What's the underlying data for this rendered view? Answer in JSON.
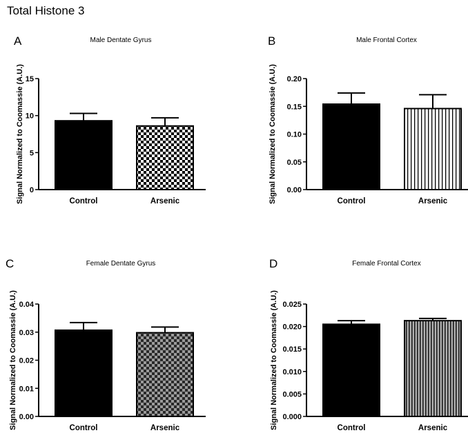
{
  "figure_title": "Total Histone 3",
  "chart_data": [
    {
      "type": "bar",
      "panel_letter": "A",
      "title": "Male Dentate Gyrus",
      "ylabel": "Signal Normalized to Coomassie (A.U.)",
      "xlabel": "",
      "categories": [
        "Control",
        "Arsenic"
      ],
      "values": [
        9.3,
        8.6
      ],
      "errors": [
        1.0,
        1.1
      ],
      "fills": [
        "solid",
        "checker"
      ],
      "ylim": [
        0,
        15
      ],
      "yticks": [
        0,
        5,
        10,
        15
      ],
      "ytick_labels": [
        "0",
        "5",
        "10",
        "15"
      ],
      "grid": false
    },
    {
      "type": "bar",
      "panel_letter": "B",
      "title": "Male Frontal Cortex",
      "ylabel": "Signal Normalized to Coomassie (A.U.)",
      "xlabel": "",
      "categories": [
        "Control",
        "Arsenic"
      ],
      "values": [
        0.154,
        0.146
      ],
      "errors": [
        0.02,
        0.025
      ],
      "fills": [
        "solid",
        "vstripe"
      ],
      "ylim": [
        0,
        0.2
      ],
      "yticks": [
        0,
        0.05,
        0.1,
        0.15,
        0.2
      ],
      "ytick_labels": [
        "0.00",
        "0.05",
        "0.10",
        "0.15",
        "0.20"
      ],
      "grid": false
    },
    {
      "type": "bar",
      "panel_letter": "C",
      "title": "Female Dentate Gyrus",
      "ylabel": "Signal Normalized to Coomassie (A.U.)",
      "xlabel": "",
      "categories": [
        "Control",
        "Arsenic"
      ],
      "values": [
        0.0307,
        0.0298
      ],
      "errors": [
        0.0027,
        0.002
      ],
      "fills": [
        "solid",
        "gray-checker"
      ],
      "ylim": [
        0,
        0.04
      ],
      "yticks": [
        0,
        0.01,
        0.02,
        0.03,
        0.04
      ],
      "ytick_labels": [
        "0.00",
        "0.01",
        "0.02",
        "0.03",
        "0.04"
      ],
      "grid": false
    },
    {
      "type": "bar",
      "panel_letter": "D",
      "title": "Female Frontal Cortex",
      "ylabel": "Signal Normalized to Coomassie (A.U.)",
      "xlabel": "",
      "categories": [
        "Control",
        "Arsenic"
      ],
      "values": [
        0.0205,
        0.0213
      ],
      "errors": [
        0.0008,
        0.0005
      ],
      "fills": [
        "solid",
        "gray-vstripe"
      ],
      "ylim": [
        0,
        0.025
      ],
      "yticks": [
        0,
        0.005,
        0.01,
        0.015,
        0.02,
        0.025
      ],
      "ytick_labels": [
        "0.000",
        "0.005",
        "0.010",
        "0.015",
        "0.020",
        "0.025"
      ],
      "grid": false
    }
  ]
}
